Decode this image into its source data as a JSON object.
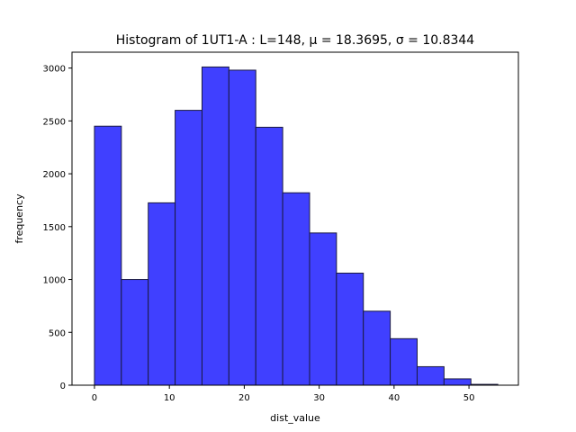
{
  "chart_data": {
    "type": "bar",
    "title": "Histogram of 1UT1-A : L=148, μ = 18.3695, σ = 10.8344",
    "xlabel": "dist_value",
    "ylabel": "frequency",
    "xlim": [
      -3.0,
      56.6
    ],
    "ylim": [
      0,
      3150
    ],
    "xticks": [
      0,
      10,
      20,
      30,
      40,
      50
    ],
    "yticks": [
      0,
      500,
      1000,
      1500,
      2000,
      2500,
      3000
    ],
    "bin_edges": [
      0.0,
      3.59,
      7.18,
      10.77,
      14.36,
      17.95,
      21.54,
      25.13,
      28.72,
      32.31,
      35.9,
      39.49,
      43.08,
      46.67,
      50.26,
      53.85
    ],
    "values": [
      2450,
      1000,
      1725,
      2600,
      3010,
      2980,
      2440,
      1820,
      1440,
      1060,
      700,
      440,
      175,
      60,
      8
    ],
    "bar_color": "#4040ff",
    "edge_color": "#1a1a40",
    "grid": false
  }
}
